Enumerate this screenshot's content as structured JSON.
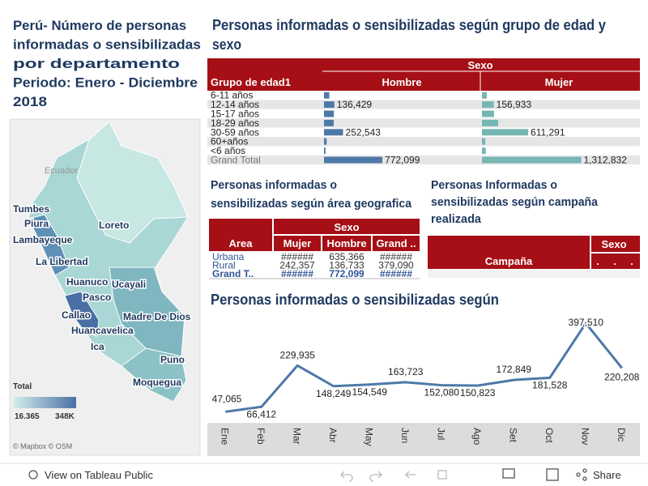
{
  "map": {
    "title_lines": [
      "Perú- Número de personas",
      "informadas o sensibilizadas",
      "por departamento",
      "Periodo: Enero - Diciembre",
      "2018"
    ],
    "labels": [
      "Ecuador",
      "Tumbes",
      "Piura",
      "Lambayeque",
      "Loreto",
      "La Libertad",
      "Huanuco",
      "Ucayali",
      "Pasco",
      "Callao",
      "Madre De Dios",
      "Huancavelica",
      "Ica",
      "Puno",
      "Moquegua"
    ],
    "legend_title": "Total",
    "legend_min": "16.365",
    "legend_max": "348K",
    "attribution": "© Mapbox  © OSM"
  },
  "chart_data": [
    {
      "type": "hbar",
      "title_lines": [
        "Personas informadas o sensibilizadas según grupo de edad y",
        "sexo"
      ],
      "group_header": "Sexo",
      "category_header": "Grupo de edad1",
      "categories": [
        "6-11 años",
        "12-14 años",
        "15-17 años",
        "18-29 años",
        "30-59 años",
        "60+años",
        "<6 años",
        "Grand Total"
      ],
      "series": [
        {
          "name": "Hombre",
          "color": "#4e79a7",
          "values": [
            70000,
            136429,
            130000,
            128000,
            252543,
            35000,
            20000,
            772099
          ],
          "value_labels": [
            null,
            "136,429",
            null,
            null,
            "252,543",
            null,
            null,
            "772,099"
          ]
        },
        {
          "name": "Mujer",
          "color": "#76b7b2",
          "values": [
            65000,
            156933,
            160000,
            215000,
            611291,
            45000,
            50000,
            1312832
          ],
          "value_labels": [
            null,
            "156,933",
            null,
            null,
            "611,291",
            null,
            null,
            "1,312,832"
          ]
        }
      ]
    },
    {
      "type": "line",
      "title": "Personas informadas o sensibilizadas según",
      "categories": [
        "Ene",
        "Feb",
        "Mar",
        "Abr",
        "May",
        "Jun",
        "Jul",
        "Ago",
        "Set",
        "Oct",
        "Nov",
        "Dic"
      ],
      "color": "#4e79a7",
      "values": [
        47065,
        66412,
        229935,
        148249,
        154549,
        163723,
        152080,
        150823,
        172849,
        181528,
        397510,
        220208
      ],
      "value_labels": [
        "47,065",
        "66,412",
        "229,935",
        "148,249",
        "154,549",
        "163,723",
        "152,080",
        "150,823",
        "172,849",
        "181,528",
        "397,510",
        "220,208"
      ],
      "ylim": [
        0,
        420000
      ]
    }
  ],
  "area_table": {
    "title_lines": [
      "Personas informadas o",
      "sensibilizadas según área geografica"
    ],
    "group_header": "Sexo",
    "columns": [
      "Area",
      "Mujer",
      "Hombre",
      "Grand .."
    ],
    "rows": [
      [
        "Urbana",
        "######",
        "635,366",
        "######"
      ],
      [
        "Rural",
        "242,357",
        "136,733",
        "379,090"
      ],
      [
        "Grand T..",
        "######",
        "772,099",
        "######"
      ]
    ]
  },
  "campaign_table": {
    "title_lines": [
      "Personas Informadas o",
      "sensibilizadas según campaña",
      "realizada"
    ],
    "group_header": "Sexo",
    "columns": [
      "Campaña",
      ".",
      ".",
      "."
    ]
  },
  "toolbar": {
    "view": "View on Tableau Public",
    "share": "Share"
  }
}
